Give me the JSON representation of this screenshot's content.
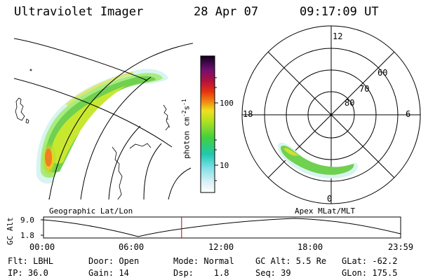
{
  "header": {
    "instrument": "Ultraviolet Imager",
    "date": "28 Apr 07",
    "time": "09:17:09 UT"
  },
  "colorbar": {
    "unit_label": "photon cm",
    "unit_exp1": "-2",
    "unit_s": "s",
    "unit_exp2": "-1",
    "ticks": [
      "100",
      "10"
    ]
  },
  "polar_plot": {
    "mlt_labels": {
      "top": "12",
      "left": "18",
      "right": "6",
      "bottom": "0"
    },
    "lat_labels": [
      "60",
      "70",
      "80"
    ]
  },
  "timeline": {
    "y_axis_label": "GC Alt",
    "y_ticks": [
      "9.0",
      "1.8"
    ],
    "x_ticks": [
      "00:00",
      "06:00",
      "12:00",
      "18:00",
      "23:59"
    ],
    "left_caption": "Geographic Lat/Lon",
    "right_caption": "Apex MLat/MLT",
    "current_time_marker_hours": 9.28
  },
  "footer": {
    "filter": "Flt: LBHL",
    "door": "Door: Open",
    "mode": "Mode: Normal",
    "gc_alt": "GC Alt: 5.5 Re",
    "glat": "GLat: -62.2",
    "ip": "IP: 36.0",
    "gain": "Gain: 14",
    "dsp": "Dsp:    1.8",
    "seq": "Seq: 39",
    "glon": "GLon: 175.5"
  }
}
